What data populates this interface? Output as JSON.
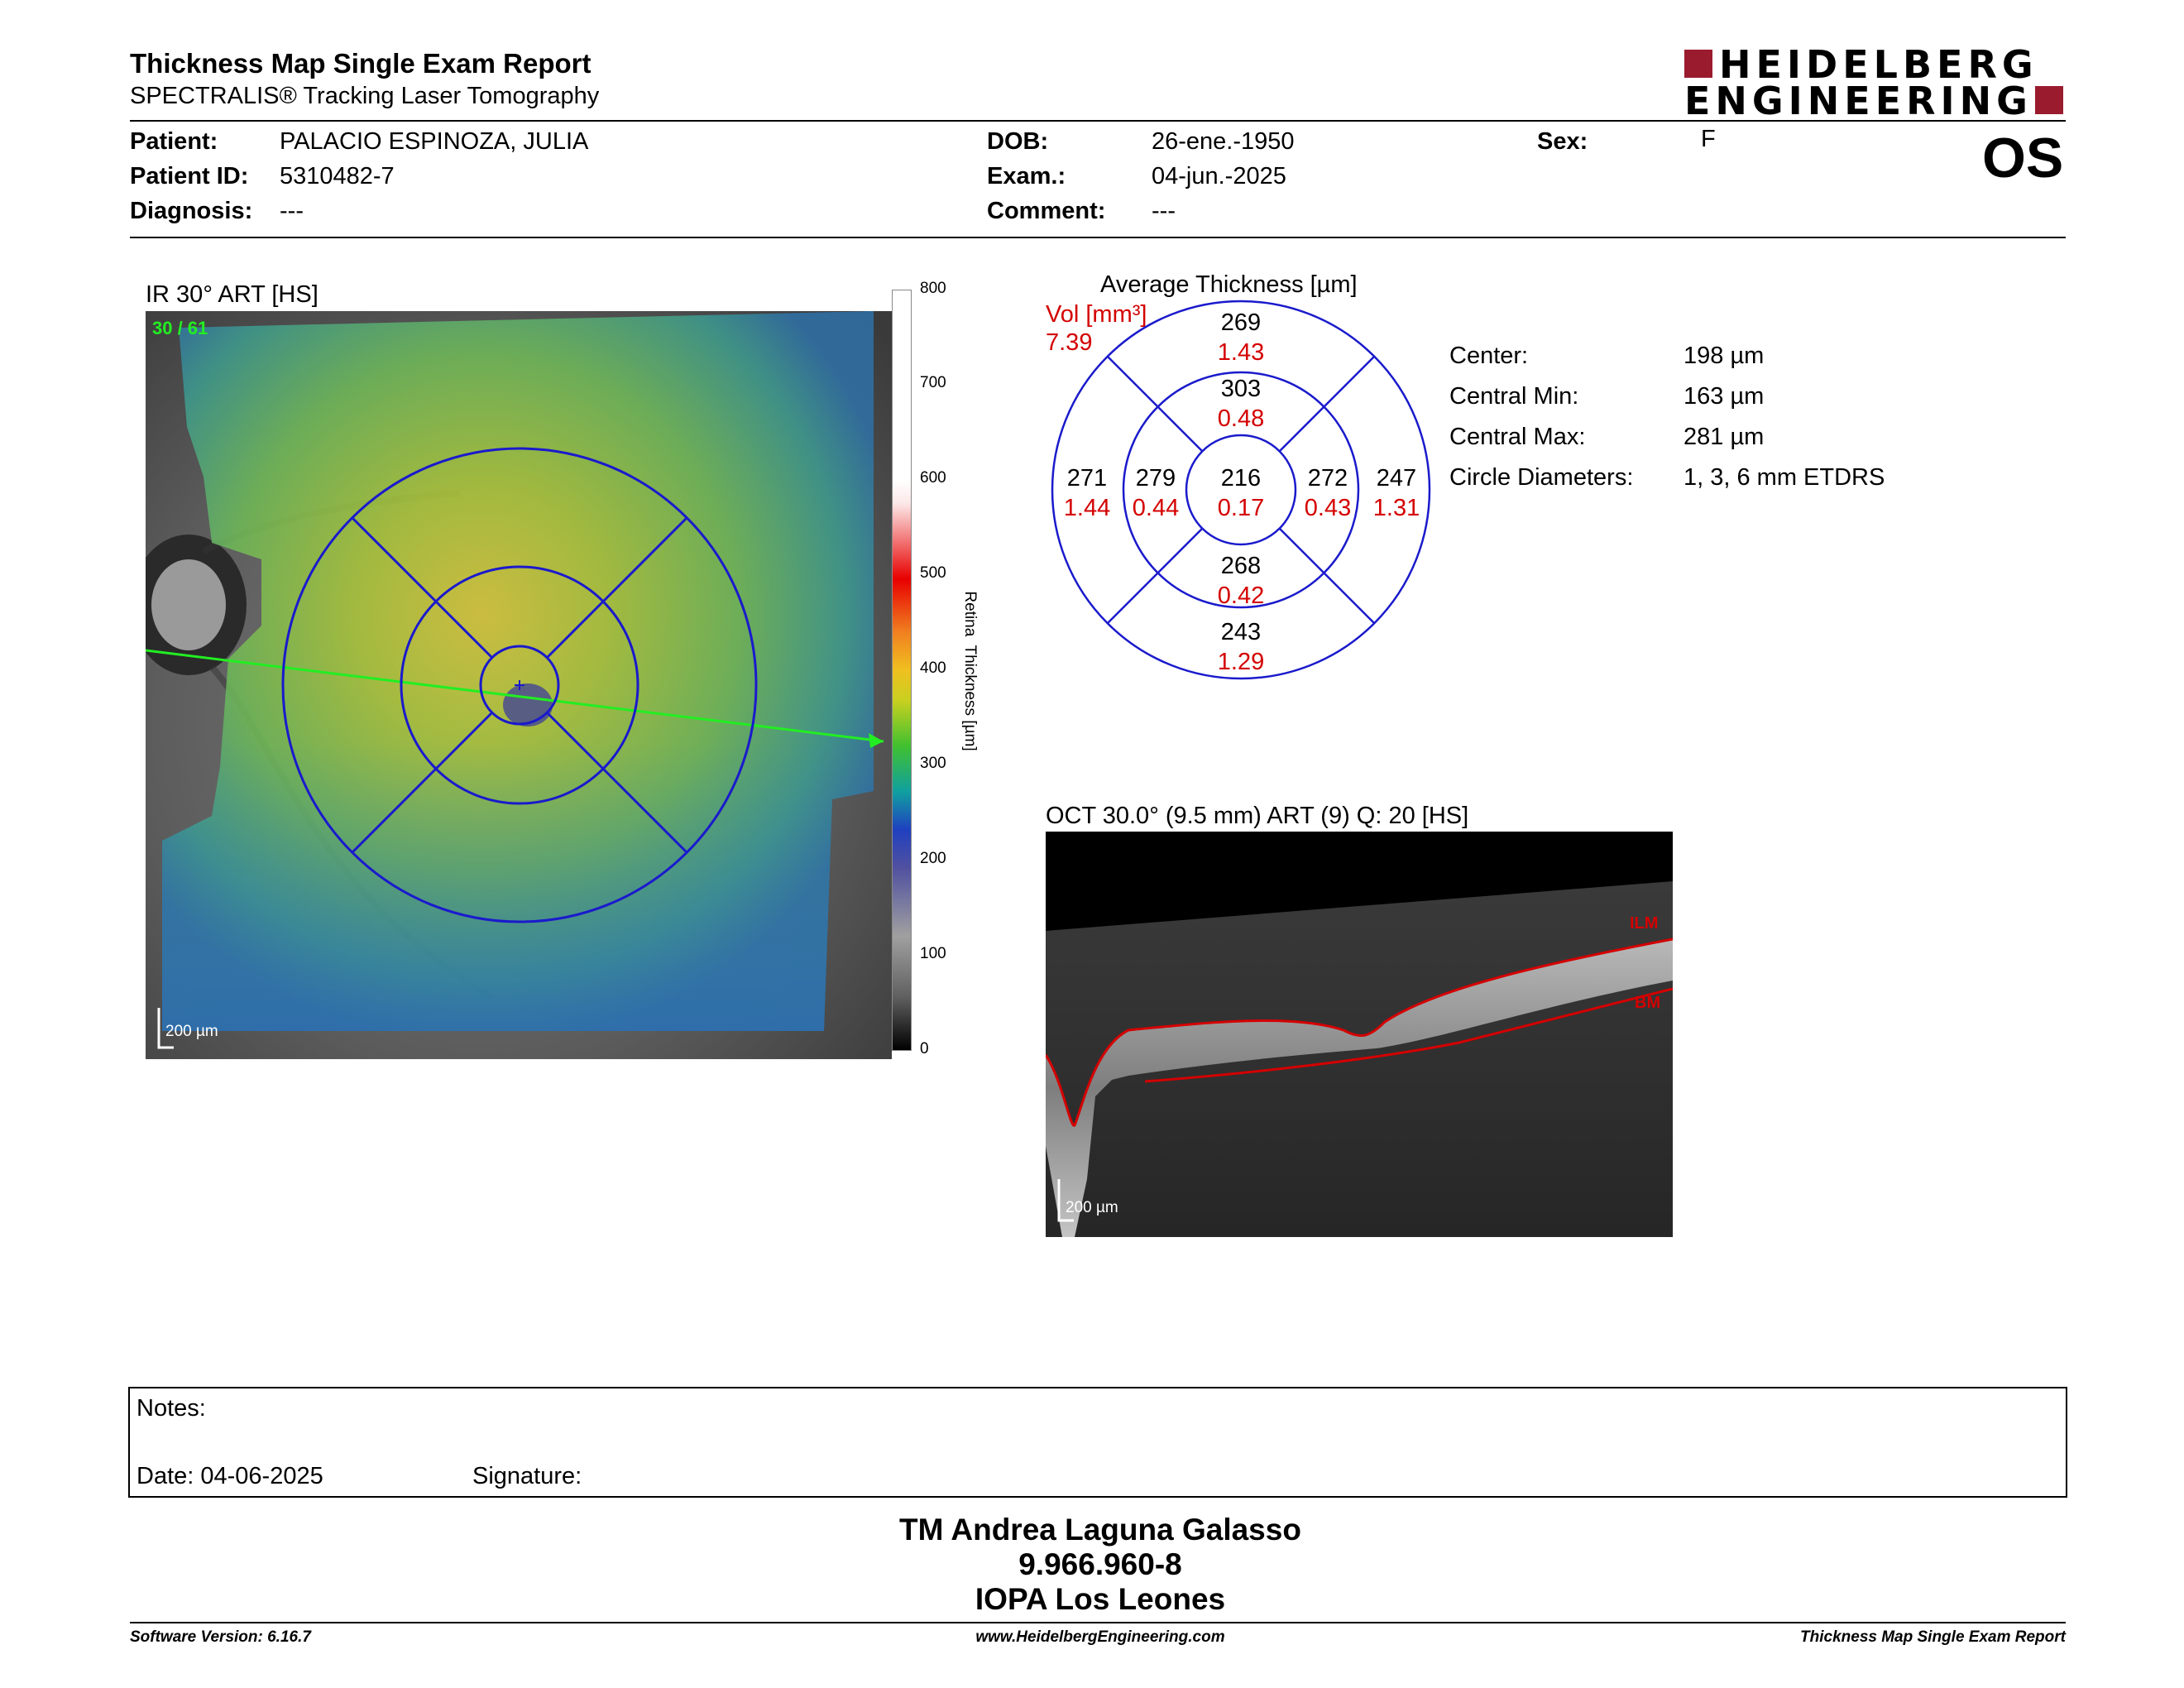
{
  "header": {
    "title": "Thickness Map Single Exam Report",
    "subtitle": "SPECTRALIS® Tracking Laser Tomography",
    "brand_line1": "HEIDELBERG",
    "brand_line2": "ENGINEERING",
    "eye": "OS",
    "brand_color": "#9a1b2e"
  },
  "patient": {
    "patient_label": "Patient:",
    "patient_value": "PALACIO ESPINOZA, JULIA",
    "id_label": "Patient ID:",
    "id_value": "5310482-7",
    "diagnosis_label": "Diagnosis:",
    "diagnosis_value": "---",
    "dob_label": "DOB:",
    "dob_value": "26-ene.-1950",
    "exam_label": "Exam.:",
    "exam_value": "04-jun.-2025",
    "comment_label": "Comment:",
    "comment_value": "---",
    "sex_label": "Sex:",
    "sex_value": "F"
  },
  "ir_image": {
    "title": "IR 30° ART [HS]",
    "frames": "30 / 61",
    "scale": "200 µm",
    "colorbar_label": "Retina  Thickness [µm]",
    "colorbar_ticks": [
      "800",
      "700",
      "600",
      "500",
      "400",
      "300",
      "200",
      "100",
      "0"
    ]
  },
  "etdrs": {
    "title": "Average Thickness [µm]",
    "vol_label": "Vol [mm³]",
    "vol_value": "7.39",
    "center": {
      "thickness": "216",
      "volume": "0.17"
    },
    "inner_superior": {
      "thickness": "303",
      "volume": "0.48"
    },
    "inner_inferior": {
      "thickness": "268",
      "volume": "0.42"
    },
    "inner_temporal": {
      "thickness": "279",
      "volume": "0.44"
    },
    "inner_nasal": {
      "thickness": "272",
      "volume": "0.43"
    },
    "outer_superior": {
      "thickness": "269",
      "volume": "1.43"
    },
    "outer_inferior": {
      "thickness": "243",
      "volume": "1.29"
    },
    "outer_temporal": {
      "thickness": "271",
      "volume": "1.44"
    },
    "outer_nasal": {
      "thickness": "247",
      "volume": "1.31"
    }
  },
  "stats": {
    "center_label": "Center:",
    "center_value": "198 µm",
    "min_label": "Central Min:",
    "min_value": "163 µm",
    "max_label": "Central Max:",
    "max_value": "281 µm",
    "diam_label": "Circle Diameters:",
    "diam_value": "1, 3, 6 mm ETDRS"
  },
  "oct_image": {
    "title": "OCT 30.0° (9.5 mm) ART (9) Q: 20 [HS]",
    "ilm": "ILM",
    "bm": "BM",
    "scale": "200 µm"
  },
  "notes": {
    "notes_label": "Notes:",
    "date_label": "Date: 04-06-2025",
    "signature_label": "Signature:"
  },
  "signer": {
    "name": "TM Andrea Laguna Galasso",
    "id": "9.966.960-8",
    "institution": "IOPA Los Leones"
  },
  "footer": {
    "software": "Software Version: 6.16.7",
    "url": "www.HeidelbergEngineering.com",
    "report": "Thickness Map Single Exam Report"
  }
}
